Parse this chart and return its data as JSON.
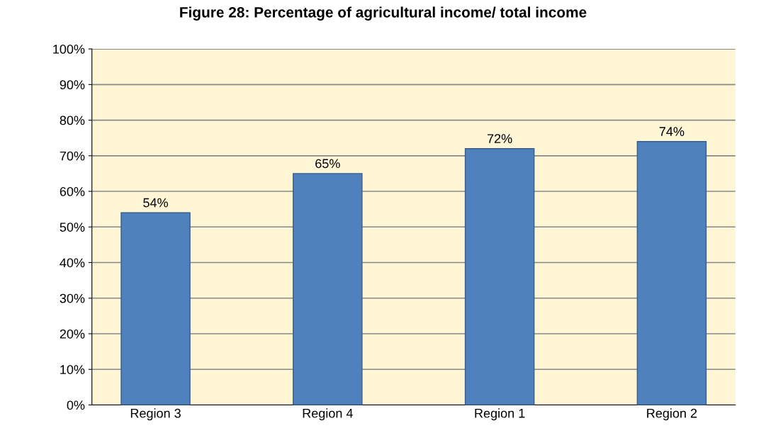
{
  "chart_data": {
    "type": "bar",
    "title": "Figure 28: Percentage of agricultural income/ total income",
    "categories": [
      "Region 3",
      "Region 4",
      "Region 1",
      "Region 2"
    ],
    "values": [
      54,
      65,
      72,
      74
    ],
    "value_labels": [
      "54%",
      "65%",
      "72%",
      "74%"
    ],
    "color": "#4f81bd",
    "ylim": [
      0,
      100
    ],
    "yticks": [
      {
        "value": 0,
        "label": "0%"
      },
      {
        "value": 10,
        "label": "10%"
      },
      {
        "value": 20,
        "label": "20%"
      },
      {
        "value": 30,
        "label": "30%"
      },
      {
        "value": 40,
        "label": "40%"
      },
      {
        "value": 50,
        "label": "50%"
      },
      {
        "value": 60,
        "label": "60%"
      },
      {
        "value": 70,
        "label": "70%"
      },
      {
        "value": 80,
        "label": "80%"
      },
      {
        "value": 90,
        "label": "90%"
      },
      {
        "value": 100,
        "label": "100%"
      }
    ],
    "grid": "y"
  }
}
